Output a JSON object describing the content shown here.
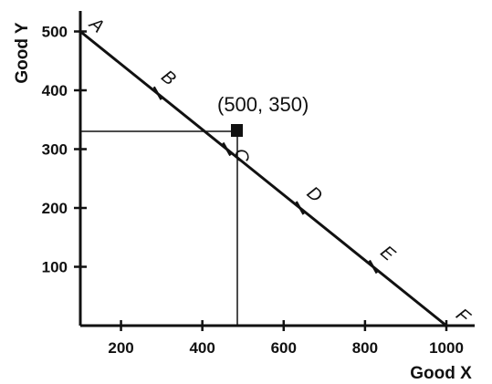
{
  "chart_data": {
    "type": "line",
    "title": "",
    "xlabel": "Good X",
    "ylabel": "Good Y",
    "xlim": [
      100,
      1000
    ],
    "ylim": [
      0,
      560
    ],
    "x_ticks": [
      200,
      400,
      600,
      800,
      1000
    ],
    "y_ticks": [
      100,
      200,
      300,
      400,
      500
    ],
    "grid": false,
    "series": [
      {
        "x": [
          100,
          1000
        ],
        "y": [
          500,
          0
        ]
      }
    ],
    "points": [
      {
        "label": "A",
        "x": 100,
        "y": 500
      },
      {
        "label": "B",
        "x": 290,
        "y": 395
      },
      {
        "label": "C",
        "x": 460,
        "y": 300
      },
      {
        "label": "D",
        "x": 640,
        "y": 200
      },
      {
        "label": "E",
        "x": 820,
        "y": 100
      },
      {
        "label": "F",
        "x": 1000,
        "y": 0
      }
    ],
    "highlight": {
      "label": "(500, 350)",
      "x": 500,
      "y": 350
    }
  }
}
